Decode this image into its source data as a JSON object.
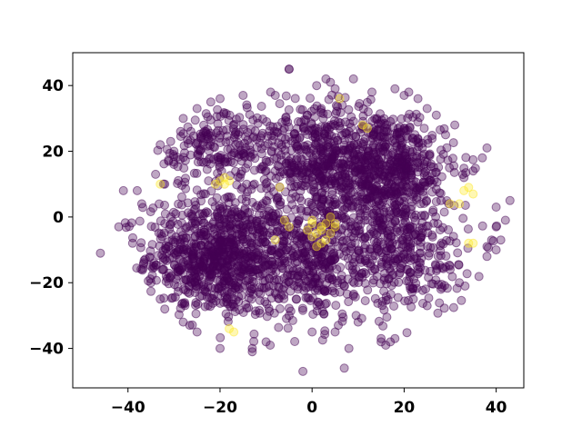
{
  "chart_data": {
    "type": "scatter",
    "title": "",
    "xlabel": "",
    "ylabel": "",
    "xlim": [
      -52,
      46
    ],
    "ylim": [
      -52,
      50
    ],
    "xticks": [
      -40,
      -20,
      0,
      20,
      40
    ],
    "yticks": [
      -40,
      -20,
      0,
      20,
      40
    ],
    "grid": false,
    "colors": {
      "class_0": "#440154",
      "class_1": "#fde725"
    },
    "alpha": 0.35,
    "clusters": [
      {
        "class": 0,
        "cx": -20,
        "cy": -12,
        "sx": 8,
        "sy": 9,
        "n": 900
      },
      {
        "class": 0,
        "cx": 15,
        "cy": 15,
        "sx": 8,
        "sy": 9,
        "n": 750
      },
      {
        "class": 0,
        "cx": -20,
        "cy": 22,
        "sx": 7,
        "sy": 7,
        "n": 250
      },
      {
        "class": 0,
        "cx": 20,
        "cy": -12,
        "sx": 7,
        "sy": 8,
        "n": 300
      },
      {
        "class": 0,
        "cx": 0,
        "cy": -15,
        "sx": 6,
        "sy": 9,
        "n": 300
      },
      {
        "class": 0,
        "cx": 0,
        "cy": 20,
        "sx": 7,
        "sy": 8,
        "n": 250
      },
      {
        "class": 0,
        "cx": 5,
        "cy": 0,
        "sx": 10,
        "sy": 8,
        "n": 200
      }
    ],
    "series": [
      {
        "class": 0,
        "points": [
          [
            -46,
            -11
          ],
          [
            -42,
            -3
          ],
          [
            -41,
            8
          ],
          [
            -39,
            -8
          ],
          [
            -38,
            8
          ],
          [
            -37,
            4
          ],
          [
            -35,
            -20
          ],
          [
            -34,
            13
          ],
          [
            -32,
            -2
          ],
          [
            -32,
            10
          ],
          [
            -5,
            45
          ],
          [
            -5,
            45
          ],
          [
            1,
            40
          ],
          [
            3,
            42
          ],
          [
            4,
            41
          ],
          [
            5,
            39
          ],
          [
            9,
            42
          ],
          [
            13,
            38
          ],
          [
            18,
            39
          ],
          [
            20,
            37
          ],
          [
            15,
            -38
          ],
          [
            16,
            -39
          ],
          [
            17,
            -38
          ],
          [
            15,
            -37
          ],
          [
            18,
            -37
          ],
          [
            -13,
            -40
          ],
          [
            -13,
            -41
          ],
          [
            -20,
            -40
          ],
          [
            -10,
            -38
          ],
          [
            -2,
            -47
          ],
          [
            7,
            -46
          ],
          [
            8,
            -40
          ],
          [
            -32,
            -28
          ],
          [
            -28,
            -32
          ],
          [
            -25,
            -35
          ],
          [
            38,
            -12
          ],
          [
            40,
            -10
          ],
          [
            41,
            -7
          ],
          [
            43,
            5
          ],
          [
            42,
            -1
          ],
          [
            40,
            3
          ],
          [
            40,
            -3
          ],
          [
            39,
            -7
          ],
          [
            38,
            -9
          ],
          [
            38,
            21
          ],
          [
            37,
            18
          ],
          [
            35,
            14
          ],
          [
            33,
            12
          ],
          [
            -28,
            30
          ],
          [
            -25,
            33
          ],
          [
            -22,
            35
          ],
          [
            -20,
            36
          ],
          [
            -15,
            37
          ],
          [
            -9,
            38
          ],
          [
            -8,
            37
          ],
          [
            -35,
            -15
          ],
          [
            -33,
            -25
          ],
          [
            -5,
            -30
          ],
          [
            0,
            -35
          ],
          [
            5,
            -35
          ],
          [
            10,
            -32
          ],
          [
            22,
            -25
          ],
          [
            25,
            -27
          ],
          [
            28,
            -22
          ],
          [
            30,
            -16
          ],
          [
            32,
            -20
          ],
          [
            -30,
            20
          ],
          [
            -33,
            22
          ],
          [
            -30,
            16
          ],
          [
            29,
            25
          ],
          [
            31,
            28
          ],
          [
            27,
            31
          ],
          [
            25,
            33
          ],
          [
            23,
            36
          ],
          [
            21,
            38
          ],
          [
            -3,
            29
          ],
          [
            -1,
            31
          ],
          [
            2,
            33
          ],
          [
            4,
            28
          ],
          [
            -6,
            27
          ],
          [
            8,
            26
          ],
          [
            11,
            27
          ],
          [
            -8,
            14
          ],
          [
            -10,
            5
          ],
          [
            -12,
            -2
          ]
        ]
      },
      {
        "class": 1,
        "points": [
          [
            -20,
            11
          ],
          [
            -19,
            12
          ],
          [
            -19,
            10
          ],
          [
            -18,
            11
          ],
          [
            -21,
            10
          ],
          [
            -7,
            9
          ],
          [
            -8,
            -7
          ],
          [
            0,
            -6
          ],
          [
            1,
            -5
          ],
          [
            1,
            -9
          ],
          [
            2,
            -8
          ],
          [
            2,
            -4
          ],
          [
            3,
            -7
          ],
          [
            -1,
            -4
          ],
          [
            0,
            -2
          ],
          [
            0,
            -1
          ],
          [
            2,
            -3
          ],
          [
            3,
            -2
          ],
          [
            4,
            0
          ],
          [
            5,
            -2
          ],
          [
            5,
            -3
          ],
          [
            4,
            -5
          ],
          [
            -6,
            -1
          ],
          [
            -5,
            -3
          ],
          [
            6,
            36
          ],
          [
            11,
            28
          ],
          [
            12,
            27
          ],
          [
            34,
            9
          ],
          [
            35,
            7
          ],
          [
            33,
            8
          ],
          [
            32,
            4
          ],
          [
            30,
            4
          ],
          [
            34,
            -8
          ],
          [
            35,
            -8
          ],
          [
            -17,
            -35
          ],
          [
            -18,
            -34
          ],
          [
            -33,
            10
          ]
        ]
      }
    ]
  }
}
